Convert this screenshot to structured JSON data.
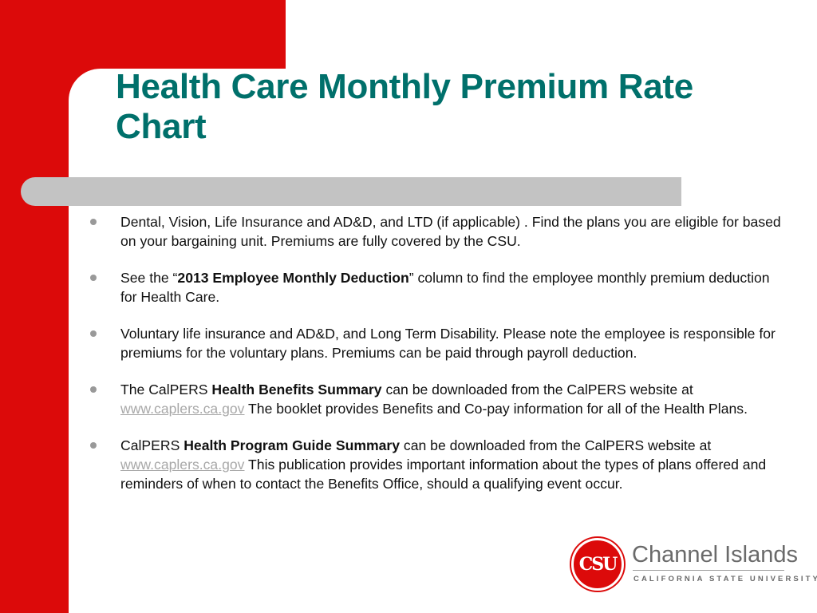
{
  "slide": {
    "title": "Health Care Monthly Premium Rate Chart",
    "bullets": [
      {
        "parts": [
          {
            "text": "Dental, Vision, Life Insurance and AD&D, and LTD (if applicable) .  Find the plans you are eligible for based on your bargaining unit. Premiums are fully covered by the CSU.",
            "style": "normal"
          }
        ]
      },
      {
        "parts": [
          {
            "text": "See the “",
            "style": "normal"
          },
          {
            "text": "2013 Employee Monthly Deduction",
            "style": "bold"
          },
          {
            "text": "” column to find the employee monthly premium deduction for Health Care.",
            "style": "normal"
          }
        ]
      },
      {
        "parts": [
          {
            "text": "Voluntary life insurance and AD&D, and Long Term Disability.  Please note the employee is responsible for premiums for the voluntary plans.  Premiums can be paid through payroll deduction.",
            "style": "normal"
          }
        ]
      },
      {
        "parts": [
          {
            "text": "The CalPERS ",
            "style": "normal"
          },
          {
            "text": "Health Benefits Summary",
            "style": "bold"
          },
          {
            "text": " can be downloaded from the CalPERS website at ",
            "style": "normal"
          },
          {
            "text": "www.caplers.ca.gov",
            "style": "link"
          },
          {
            "text": "   The booklet provides Benefits and Co-pay information for all of the Health Plans.",
            "style": "normal"
          }
        ]
      },
      {
        "parts": [
          {
            "text": "CalPERS ",
            "style": "normal"
          },
          {
            "text": "Health Program Guide Summary",
            "style": "bold"
          },
          {
            "text": " can be downloaded from the CalPERS website at ",
            "style": "normal"
          },
          {
            "text": "www.caplers.ca.gov",
            "style": "link"
          },
          {
            "text": "  This publication provides important information about the types of plans offered and reminders of when to contact the Benefits Office, should a qualifying event occur.",
            "style": "normal"
          }
        ]
      }
    ]
  },
  "logo": {
    "mark": "CSU",
    "name": "Channel Islands",
    "subtitle": "CALIFORNIA STATE UNIVERSITY"
  },
  "colors": {
    "accent_red": "#dc0a0a",
    "title_teal": "#00706b",
    "divider_gray": "#c3c3c3",
    "link_gray": "#a8a8a8"
  }
}
